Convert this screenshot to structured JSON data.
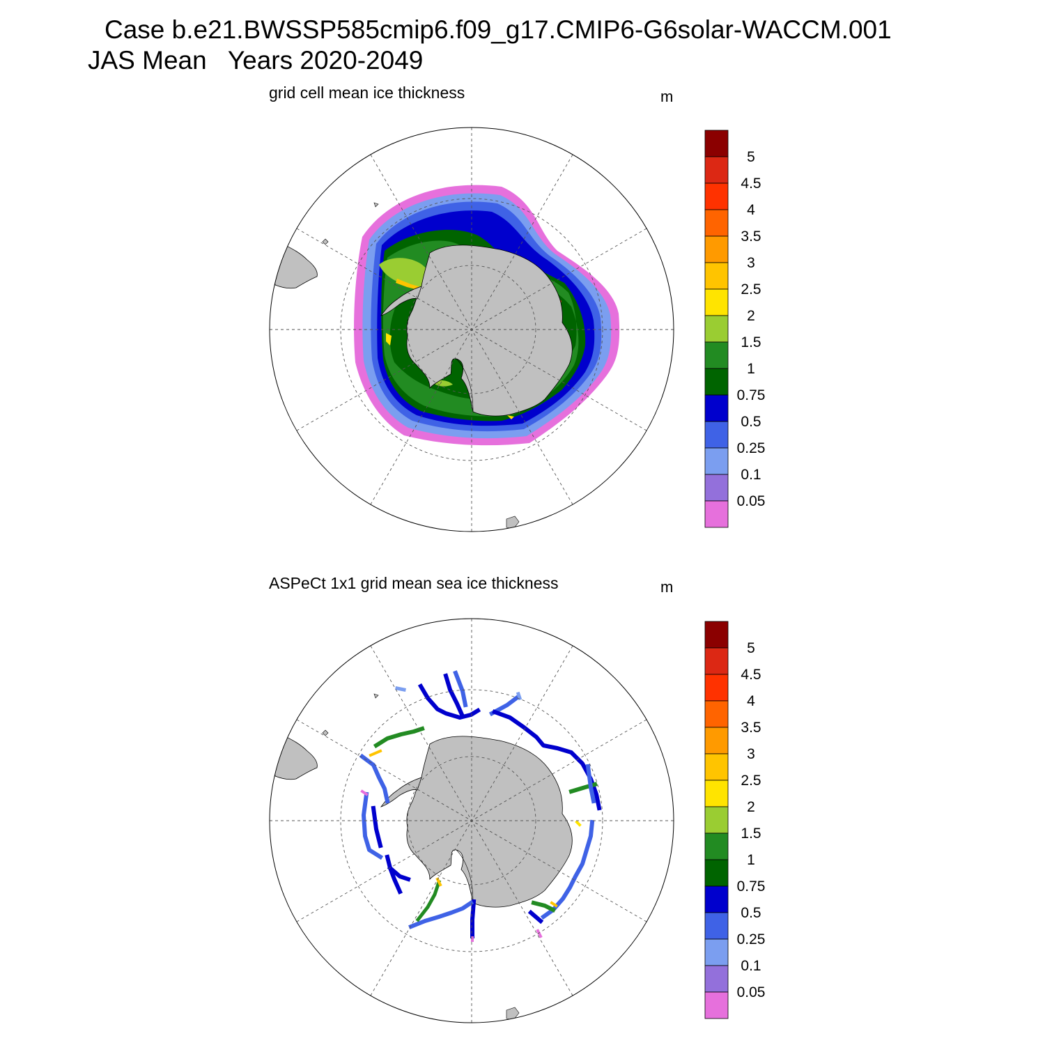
{
  "header": {
    "line1": "Case b.e21.BWSSP585cmip6.f09_g17.CMIP6-G6solar-WACCM.001",
    "line2": "JAS Mean   Years 2020-2049"
  },
  "panels": [
    {
      "id": "model",
      "title": "grid cell mean ice thickness",
      "units": "m"
    },
    {
      "id": "obs",
      "title": "ASPeCt 1x1 grid mean sea ice thickness",
      "units": "m"
    }
  ],
  "colorbar": {
    "levels": [
      "0.05",
      "0.1",
      "0.25",
      "0.5",
      "0.75",
      "1",
      "1.5",
      "2",
      "2.5",
      "3",
      "3.5",
      "4",
      "4.5",
      "5"
    ],
    "colors": [
      "#e670dc",
      "#9370db",
      "#7b9ef0",
      "#3f62e6",
      "#0000cd",
      "#006400",
      "#228b22",
      "#9acd32",
      "#ffe400",
      "#ffc400",
      "#ff9a00",
      "#ff6400",
      "#ff3200",
      "#dc2814",
      "#8b0000"
    ]
  },
  "map": {
    "projection": "south-polar-stereographic",
    "land_color": "#c0c0c0",
    "grid_style": "dashed"
  }
}
